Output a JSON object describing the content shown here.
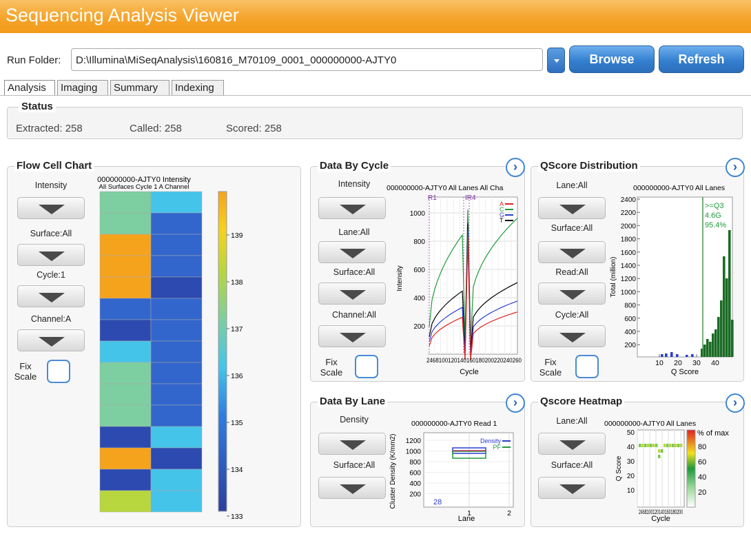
{
  "app": {
    "title": "Sequencing Analysis Viewer"
  },
  "run": {
    "label": "Run Folder:",
    "path": "D:\\Illumina\\MiSeqAnalysis\\160816_M70109_0001_000000000-AJTY0",
    "browse": "Browse",
    "refresh": "Refresh"
  },
  "tabs": [
    "Analysis",
    "Imaging",
    "Summary",
    "Indexing"
  ],
  "status": {
    "title": "Status",
    "extracted": "Extracted: 258",
    "called": "Called: 258",
    "scored": "Scored: 258"
  },
  "flowcell": {
    "title": "Flow Cell Chart",
    "selectors": [
      "Intensity",
      "Surface:All",
      "Cycle:1",
      "Channel:A"
    ],
    "fix": "Fix Scale",
    "chart_title": "000000000-AJTY0 Intensity",
    "chart_sub": "All Surfaces Cycle 1 A Channel",
    "colorbar": {
      "ticks": [
        "139",
        "138",
        "137",
        "136",
        "135",
        "134",
        "133"
      ]
    }
  },
  "bycycle": {
    "title": "Data By Cycle",
    "selectors": [
      "Intensity",
      "Lane:All",
      "Surface:All",
      "Channel:All"
    ],
    "fix": "Fix Scale",
    "chart_title": "000000000-AJTY0 All Lanes All Cha",
    "ylabel": "Intensity",
    "xlabel": "Cycle",
    "yticks": [
      "1000",
      "800",
      "600",
      "400",
      "200"
    ],
    "xticks": "2468100120140160180200220240260",
    "reads": [
      "R1",
      "IR4"
    ],
    "legend": [
      "A",
      "C",
      "G",
      "T"
    ]
  },
  "qdist": {
    "title": "QScore Distribution",
    "selectors": [
      "Lane:All",
      "Surface:All",
      "Read:All",
      "Cycle:All"
    ],
    "fix": "Fix Scale",
    "chart_title": "000000000-AJTY0 All Lanes",
    "ylabel": "Total (million)",
    "xlabel": "Q Score",
    "yticks": [
      "2400",
      "2200",
      "2000",
      "1800",
      "1600",
      "1400",
      "1200",
      "1000",
      "800",
      "600",
      "400",
      "200"
    ],
    "xticks": [
      "10",
      "20",
      "30",
      "40"
    ],
    "annot": [
      ">=Q3",
      "4.6G",
      "95.4%"
    ]
  },
  "bylane": {
    "title": "Data By Lane",
    "selectors": [
      "Density",
      "Surface:All"
    ],
    "chart_title": "000000000-AJTY0 Read 1",
    "ylabel": "Cluster Density (K/mm2)",
    "xlabel": "Lane",
    "yticks": [
      "1200",
      "1000",
      "800",
      "600",
      "400",
      "200"
    ],
    "xticks": [
      "1",
      "2"
    ],
    "legend": [
      "Density",
      "PF"
    ],
    "annot": "28"
  },
  "qheat": {
    "title": "Qscore Heatmap",
    "selectors": [
      "Lane:All",
      "Surface:All"
    ],
    "chart_title": "000000000-AJTY0 All Lanes",
    "ylabel": "Q Score",
    "xlabel": "Cycle",
    "yticks": [
      "50",
      "40",
      "30",
      "20",
      "10"
    ],
    "xticks": "2468100120140160180200",
    "cbar_title": "% of max",
    "cbar_ticks": [
      "80",
      "60",
      "40",
      "20"
    ]
  },
  "colors": {
    "accent": "#f5a42b",
    "button": "#3480d0",
    "A": "#e02020",
    "C": "#1f9a3a",
    "G": "#2a3ed0",
    "T": "#000000"
  }
}
